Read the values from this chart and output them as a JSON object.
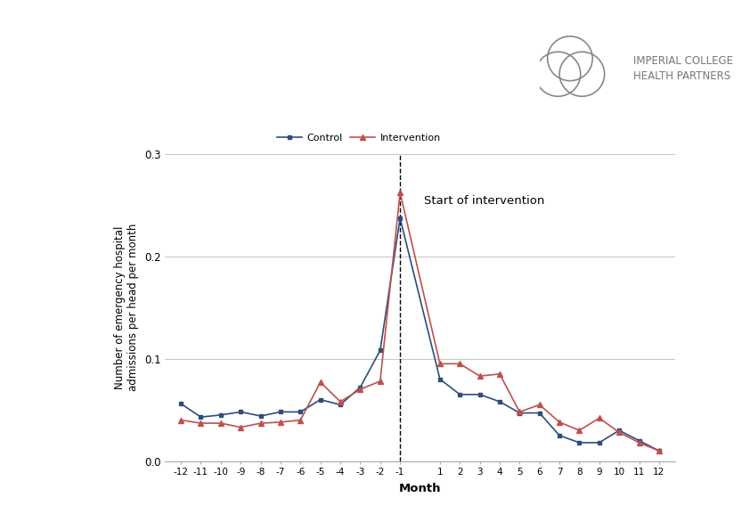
{
  "months": [
    -12,
    -11,
    -10,
    -9,
    -8,
    -7,
    -6,
    -5,
    -4,
    -3,
    -2,
    -1,
    1,
    2,
    3,
    4,
    5,
    6,
    7,
    8,
    9,
    10,
    11,
    12
  ],
  "control": [
    0.056,
    0.043,
    0.045,
    0.048,
    0.044,
    0.048,
    0.048,
    0.06,
    0.055,
    0.072,
    0.108,
    0.237,
    0.08,
    0.065,
    0.065,
    0.058,
    0.047,
    0.047,
    0.025,
    0.018,
    0.018,
    0.03,
    0.02,
    0.01
  ],
  "intervention": [
    0.04,
    0.037,
    0.037,
    0.033,
    0.037,
    0.038,
    0.04,
    0.077,
    0.058,
    0.07,
    0.078,
    0.262,
    0.095,
    0.095,
    0.083,
    0.085,
    0.048,
    0.055,
    0.038,
    0.03,
    0.042,
    0.028,
    0.018,
    0.01
  ],
  "control_color": "#2e4d7b",
  "intervention_color": "#c0504d",
  "ylabel": "Number of emergency hospital\nadmissions per head per month",
  "xlabel": "Month",
  "ylim": [
    0.0,
    0.3
  ],
  "yticks": [
    0.0,
    0.1,
    0.2,
    0.3
  ],
  "vline_x": -1,
  "annotation_text": "Start of intervention",
  "legend_labels": [
    "Control",
    "Intervention"
  ],
  "logo_text": "IMPERIAL COLLEGE\nHEALTH PARTNERS",
  "background_color": "#ffffff",
  "grid_color": "#bbbbbb"
}
